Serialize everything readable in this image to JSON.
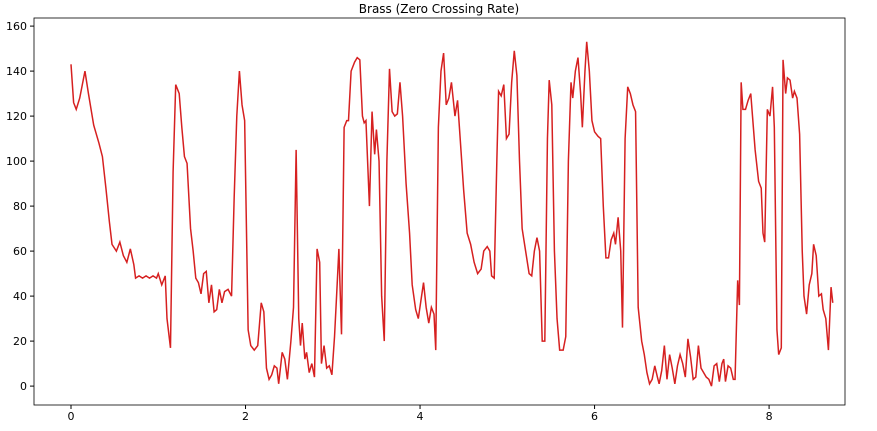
{
  "chart_data": {
    "type": "line",
    "title": "Brass (Zero Crossing Rate)",
    "x": [
      0.0,
      0.03,
      0.06,
      0.1,
      0.14,
      0.16,
      0.2,
      0.26,
      0.32,
      0.36,
      0.4,
      0.44,
      0.47,
      0.52,
      0.56,
      0.6,
      0.64,
      0.68,
      0.72,
      0.74,
      0.78,
      0.82,
      0.86,
      0.9,
      0.94,
      0.98,
      1.0,
      1.04,
      1.08,
      1.1,
      1.14,
      1.17,
      1.2,
      1.24,
      1.27,
      1.3,
      1.33,
      1.37,
      1.4,
      1.43,
      1.46,
      1.49,
      1.52,
      1.55,
      1.58,
      1.61,
      1.64,
      1.67,
      1.7,
      1.73,
      1.76,
      1.8,
      1.84,
      1.87,
      1.9,
      1.93,
      1.96,
      1.99,
      2.03,
      2.06,
      2.1,
      2.14,
      2.18,
      2.21,
      2.24,
      2.27,
      2.3,
      2.33,
      2.36,
      2.38,
      2.42,
      2.45,
      2.48,
      2.52,
      2.55,
      2.58,
      2.61,
      2.63,
      2.65,
      2.68,
      2.7,
      2.73,
      2.76,
      2.79,
      2.82,
      2.85,
      2.87,
      2.9,
      2.93,
      2.96,
      2.99,
      3.02,
      3.05,
      3.07,
      3.1,
      3.13,
      3.16,
      3.18,
      3.21,
      3.25,
      3.28,
      3.31,
      3.34,
      3.36,
      3.38,
      3.42,
      3.45,
      3.48,
      3.5,
      3.53,
      3.56,
      3.59,
      3.62,
      3.65,
      3.68,
      3.71,
      3.74,
      3.77,
      3.8,
      3.84,
      3.88,
      3.91,
      3.95,
      3.98,
      4.01,
      4.04,
      4.07,
      4.1,
      4.13,
      4.16,
      4.18,
      4.21,
      4.24,
      4.27,
      4.3,
      4.33,
      4.36,
      4.4,
      4.43,
      4.46,
      4.5,
      4.54,
      4.58,
      4.62,
      4.66,
      4.7,
      4.73,
      4.77,
      4.8,
      4.82,
      4.85,
      4.88,
      4.9,
      4.93,
      4.96,
      4.99,
      5.02,
      5.05,
      5.08,
      5.11,
      5.14,
      5.17,
      5.21,
      5.25,
      5.28,
      5.31,
      5.34,
      5.37,
      5.4,
      5.43,
      5.46,
      5.48,
      5.51,
      5.54,
      5.57,
      5.6,
      5.64,
      5.67,
      5.7,
      5.73,
      5.75,
      5.78,
      5.81,
      5.84,
      5.86,
      5.89,
      5.91,
      5.94,
      5.97,
      6.0,
      6.04,
      6.07,
      6.1,
      6.13,
      6.16,
      6.19,
      6.22,
      6.24,
      6.27,
      6.3,
      6.32,
      6.35,
      6.38,
      6.41,
      6.44,
      6.47,
      6.5,
      6.54,
      6.57,
      6.6,
      6.63,
      6.66,
      6.69,
      6.72,
      6.74,
      6.77,
      6.8,
      6.83,
      6.86,
      6.89,
      6.92,
      6.95,
      6.98,
      7.01,
      7.04,
      7.07,
      7.1,
      7.13,
      7.16,
      7.19,
      7.22,
      7.25,
      7.28,
      7.31,
      7.34,
      7.37,
      7.4,
      7.43,
      7.46,
      7.48,
      7.5,
      7.53,
      7.56,
      7.59,
      7.61,
      7.64,
      7.66,
      7.68,
      7.7,
      7.73,
      7.76,
      7.79,
      7.81,
      7.84,
      7.88,
      7.91,
      7.93,
      7.95,
      7.98,
      8.01,
      8.04,
      8.06,
      8.09,
      8.11,
      8.14,
      8.16,
      8.19,
      8.21,
      8.24,
      8.27,
      8.29,
      8.32,
      8.35,
      8.38,
      8.4,
      8.43,
      8.46,
      8.49,
      8.51,
      8.54,
      8.57,
      8.6,
      8.62,
      8.65,
      8.68,
      8.71,
      8.73
    ],
    "series": [
      {
        "color": "#d62020",
        "values": [
          143,
          126,
          123,
          128,
          136,
          140,
          130,
          116,
          108,
          102,
          88,
          73,
          63,
          60,
          64,
          58,
          55,
          61,
          54,
          48,
          49,
          48,
          49,
          48,
          49,
          48,
          50,
          45,
          49,
          30,
          17,
          95,
          134,
          130,
          115,
          102,
          99,
          70,
          60,
          48,
          46,
          41,
          50,
          51,
          37,
          45,
          33,
          34,
          43,
          37,
          42,
          43,
          40,
          84,
          120,
          140,
          125,
          118,
          25,
          18,
          16,
          18,
          37,
          33,
          8,
          3,
          5,
          9,
          8,
          1,
          15,
          12,
          3,
          20,
          35,
          105,
          30,
          18,
          28,
          12,
          15,
          6,
          10,
          4,
          61,
          55,
          10,
          18,
          8,
          9,
          5,
          22,
          45,
          61,
          23,
          115,
          118,
          118,
          140,
          144,
          146,
          145,
          120,
          117,
          118,
          80,
          122,
          103,
          114,
          100,
          40,
          20,
          100,
          141,
          122,
          120,
          121,
          135,
          120,
          90,
          68,
          45,
          34,
          30,
          38,
          46,
          35,
          28,
          35,
          32,
          16,
          115,
          140,
          148,
          125,
          128,
          135,
          120,
          127,
          110,
          87,
          68,
          63,
          55,
          50,
          52,
          60,
          62,
          60,
          49,
          48,
          100,
          131,
          129,
          134,
          110,
          112,
          135,
          149,
          138,
          100,
          70,
          60,
          50,
          49,
          60,
          66,
          60,
          20,
          20,
          110,
          136,
          125,
          60,
          30,
          16,
          16,
          22,
          100,
          135,
          128,
          140,
          146,
          130,
          115,
          140,
          153,
          140,
          118,
          113,
          111,
          110,
          80,
          57,
          57,
          65,
          68,
          63,
          75,
          60,
          26,
          110,
          133,
          130,
          125,
          122,
          35,
          20,
          14,
          6,
          1,
          3,
          9,
          4,
          1,
          7,
          18,
          3,
          14,
          8,
          1,
          9,
          14,
          10,
          4,
          21,
          13,
          3,
          4,
          18,
          8,
          6,
          4,
          3,
          0,
          9,
          10,
          2,
          10,
          12,
          2,
          9,
          8,
          3,
          3,
          47,
          36,
          135,
          123,
          123,
          127,
          130,
          120,
          105,
          91,
          88,
          68,
          64,
          123,
          120,
          133,
          115,
          25,
          14,
          17,
          145,
          130,
          137,
          136,
          128,
          131,
          128,
          112,
          60,
          40,
          32,
          45,
          50,
          63,
          58,
          40,
          41,
          34,
          30,
          16,
          44,
          37
        ]
      }
    ],
    "xlim": [
      -0.424,
      8.87
    ],
    "ylim": [
      -8.4,
      163.6
    ],
    "xticks": [
      0,
      2,
      4,
      6,
      8
    ],
    "yticks": [
      0,
      20,
      40,
      60,
      80,
      100,
      120,
      140,
      160
    ]
  }
}
